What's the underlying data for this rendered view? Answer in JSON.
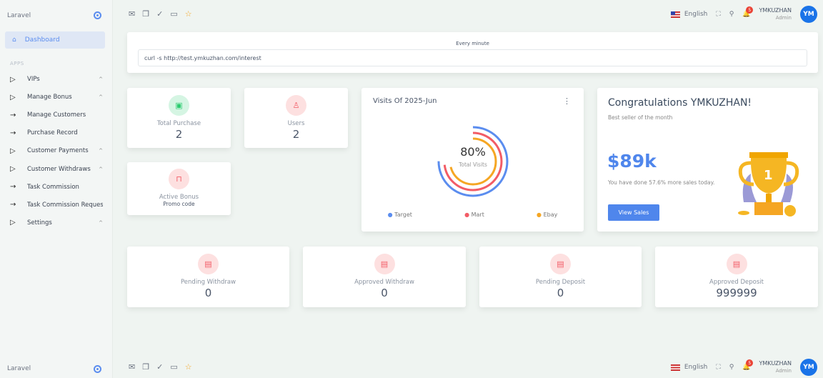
{
  "sidebar": {
    "brand": "Laravel",
    "dashboard": "Dashboard",
    "section": "APPS",
    "items": [
      {
        "label": "VIPs",
        "icon": "play-icon",
        "chevron": "^"
      },
      {
        "label": "Manage Bonus",
        "icon": "play-icon",
        "chevron": "^"
      },
      {
        "label": "Manage Customers",
        "icon": "arrow-right-icon",
        "chevron": ""
      },
      {
        "label": "Purchase Record",
        "icon": "arrow-right-icon",
        "chevron": ""
      },
      {
        "label": "Customer Payments",
        "icon": "play-icon",
        "chevron": "^"
      },
      {
        "label": "Customer Withdraws",
        "icon": "play-icon",
        "chevron": "^"
      },
      {
        "label": "Task Commission",
        "icon": "arrow-right-icon",
        "chevron": ""
      },
      {
        "label": "Task Commission Requests",
        "icon": "arrow-right-icon",
        "chevron": ""
      },
      {
        "label": "Settings",
        "icon": "play-icon",
        "chevron": "^"
      }
    ]
  },
  "topbar": {
    "language": "English",
    "notifications": "5",
    "user": "YMKUZHAN",
    "role": "Admin",
    "avatar": "YM"
  },
  "cron": {
    "label": "Every minute",
    "command": "curl -s http://test.ymkuzhan.com/interest"
  },
  "stats": {
    "total_purchase": {
      "label": "Total Purchase",
      "value": "2"
    },
    "users": {
      "label": "Users",
      "value": "2"
    },
    "active_bonus": {
      "label": "Active Bonus",
      "sub": "Promo code"
    },
    "pending_withdraw": {
      "label": "Pending Withdraw",
      "value": "0"
    },
    "approved_withdraw": {
      "label": "Approved Withdraw",
      "value": "0"
    },
    "pending_deposit": {
      "label": "Pending Deposit",
      "value": "0"
    },
    "approved_deposit": {
      "label": "Approved Deposit",
      "value": "999999"
    }
  },
  "chart_data": {
    "type": "radialBar",
    "title": "Visits Of 2025-Jun",
    "center_value": "80%",
    "center_label": "Total Visits",
    "series": [
      {
        "name": "Target",
        "value": 75,
        "color": "#5b8def"
      },
      {
        "name": "Mart",
        "value": 73,
        "color": "#f25c66"
      },
      {
        "name": "Ebay",
        "value": 71,
        "color": "#f5a623"
      }
    ]
  },
  "congrats": {
    "title": "Congratulations YMKUZHAN!",
    "subtitle": "Best seller of the month",
    "amount": "$89k",
    "text": "You have done 57.6% more sales today.",
    "button": "View Sales"
  }
}
